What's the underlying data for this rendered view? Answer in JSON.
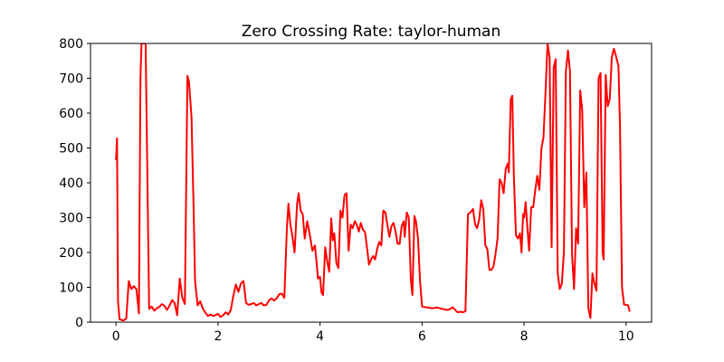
{
  "chart_data": {
    "type": "line",
    "title": "Zero Crossing Rate: taylor-human",
    "xlabel": "",
    "ylabel": "",
    "xlim": [
      -0.5,
      10.5
    ],
    "ylim": [
      0,
      800
    ],
    "x_ticks": [
      0,
      2,
      4,
      6,
      8,
      10
    ],
    "y_ticks": [
      0,
      100,
      200,
      300,
      400,
      500,
      600,
      700,
      800
    ],
    "grid": false,
    "series": [
      {
        "color": "#ff0000",
        "points": [
          [
            0.0,
            465
          ],
          [
            0.02,
            528
          ],
          [
            0.04,
            60
          ],
          [
            0.07,
            8
          ],
          [
            0.15,
            5
          ],
          [
            0.2,
            10
          ],
          [
            0.25,
            118
          ],
          [
            0.3,
            95
          ],
          [
            0.35,
            103
          ],
          [
            0.4,
            95
          ],
          [
            0.45,
            25
          ],
          [
            0.48,
            700
          ],
          [
            0.5,
            800
          ],
          [
            0.58,
            800
          ],
          [
            0.65,
            38
          ],
          [
            0.7,
            45
          ],
          [
            0.75,
            33
          ],
          [
            0.8,
            40
          ],
          [
            0.85,
            44
          ],
          [
            0.9,
            52
          ],
          [
            0.95,
            47
          ],
          [
            1.0,
            35
          ],
          [
            1.05,
            48
          ],
          [
            1.1,
            63
          ],
          [
            1.15,
            55
          ],
          [
            1.2,
            20
          ],
          [
            1.25,
            125
          ],
          [
            1.3,
            70
          ],
          [
            1.35,
            52
          ],
          [
            1.4,
            707
          ],
          [
            1.43,
            690
          ],
          [
            1.48,
            590
          ],
          [
            1.52,
            330
          ],
          [
            1.55,
            120
          ],
          [
            1.6,
            48
          ],
          [
            1.65,
            60
          ],
          [
            1.7,
            40
          ],
          [
            1.75,
            28
          ],
          [
            1.8,
            18
          ],
          [
            1.85,
            22
          ],
          [
            1.9,
            18
          ],
          [
            1.95,
            20
          ],
          [
            2.0,
            24
          ],
          [
            2.05,
            15
          ],
          [
            2.1,
            20
          ],
          [
            2.15,
            28
          ],
          [
            2.2,
            22
          ],
          [
            2.25,
            35
          ],
          [
            2.3,
            75
          ],
          [
            2.35,
            108
          ],
          [
            2.4,
            87
          ],
          [
            2.45,
            112
          ],
          [
            2.5,
            118
          ],
          [
            2.55,
            55
          ],
          [
            2.6,
            50
          ],
          [
            2.65,
            52
          ],
          [
            2.7,
            55
          ],
          [
            2.75,
            48
          ],
          [
            2.8,
            52
          ],
          [
            2.85,
            55
          ],
          [
            2.9,
            48
          ],
          [
            2.95,
            50
          ],
          [
            3.0,
            63
          ],
          [
            3.05,
            68
          ],
          [
            3.1,
            62
          ],
          [
            3.15,
            68
          ],
          [
            3.2,
            80
          ],
          [
            3.25,
            82
          ],
          [
            3.3,
            70
          ],
          [
            3.35,
            270
          ],
          [
            3.38,
            340
          ],
          [
            3.42,
            280
          ],
          [
            3.46,
            245
          ],
          [
            3.5,
            200
          ],
          [
            3.55,
            340
          ],
          [
            3.58,
            370
          ],
          [
            3.62,
            320
          ],
          [
            3.66,
            310
          ],
          [
            3.7,
            240
          ],
          [
            3.75,
            290
          ],
          [
            3.8,
            250
          ],
          [
            3.85,
            205
          ],
          [
            3.9,
            220
          ],
          [
            3.93,
            175
          ],
          [
            3.96,
            125
          ],
          [
            4.0,
            130
          ],
          [
            4.03,
            85
          ],
          [
            4.06,
            78
          ],
          [
            4.1,
            215
          ],
          [
            4.14,
            175
          ],
          [
            4.18,
            145
          ],
          [
            4.22,
            298
          ],
          [
            4.25,
            235
          ],
          [
            4.28,
            255
          ],
          [
            4.32,
            170
          ],
          [
            4.36,
            155
          ],
          [
            4.4,
            320
          ],
          [
            4.44,
            300
          ],
          [
            4.48,
            365
          ],
          [
            4.52,
            370
          ],
          [
            4.56,
            205
          ],
          [
            4.6,
            280
          ],
          [
            4.64,
            270
          ],
          [
            4.68,
            290
          ],
          [
            4.72,
            280
          ],
          [
            4.76,
            260
          ],
          [
            4.8,
            285
          ],
          [
            4.84,
            265
          ],
          [
            4.88,
            260
          ],
          [
            4.92,
            215
          ],
          [
            4.96,
            165
          ],
          [
            5.0,
            180
          ],
          [
            5.04,
            190
          ],
          [
            5.08,
            180
          ],
          [
            5.12,
            210
          ],
          [
            5.16,
            230
          ],
          [
            5.2,
            220
          ],
          [
            5.24,
            320
          ],
          [
            5.28,
            315
          ],
          [
            5.32,
            280
          ],
          [
            5.36,
            245
          ],
          [
            5.4,
            275
          ],
          [
            5.44,
            285
          ],
          [
            5.48,
            260
          ],
          [
            5.52,
            225
          ],
          [
            5.56,
            225
          ],
          [
            5.6,
            275
          ],
          [
            5.64,
            290
          ],
          [
            5.66,
            245
          ],
          [
            5.7,
            315
          ],
          [
            5.74,
            300
          ],
          [
            5.78,
            120
          ],
          [
            5.81,
            78
          ],
          [
            5.85,
            305
          ],
          [
            5.88,
            290
          ],
          [
            5.92,
            240
          ],
          [
            5.96,
            120
          ],
          [
            6.0,
            45
          ],
          [
            6.1,
            42
          ],
          [
            6.2,
            40
          ],
          [
            6.3,
            42
          ],
          [
            6.4,
            38
          ],
          [
            6.5,
            35
          ],
          [
            6.55,
            38
          ],
          [
            6.6,
            43
          ],
          [
            6.65,
            35
          ],
          [
            6.7,
            28
          ],
          [
            6.75,
            30
          ],
          [
            6.8,
            28
          ],
          [
            6.85,
            32
          ],
          [
            6.9,
            310
          ],
          [
            6.95,
            315
          ],
          [
            7.0,
            325
          ],
          [
            7.04,
            280
          ],
          [
            7.08,
            270
          ],
          [
            7.12,
            295
          ],
          [
            7.16,
            350
          ],
          [
            7.2,
            325
          ],
          [
            7.24,
            220
          ],
          [
            7.28,
            210
          ],
          [
            7.32,
            150
          ],
          [
            7.36,
            150
          ],
          [
            7.4,
            160
          ],
          [
            7.44,
            195
          ],
          [
            7.48,
            240
          ],
          [
            7.52,
            410
          ],
          [
            7.56,
            400
          ],
          [
            7.6,
            370
          ],
          [
            7.64,
            440
          ],
          [
            7.68,
            455
          ],
          [
            7.7,
            430
          ],
          [
            7.74,
            640
          ],
          [
            7.77,
            650
          ],
          [
            7.8,
            420
          ],
          [
            7.84,
            250
          ],
          [
            7.88,
            240
          ],
          [
            7.92,
            255
          ],
          [
            7.95,
            200
          ],
          [
            7.98,
            310
          ],
          [
            8.0,
            300
          ],
          [
            8.03,
            345
          ],
          [
            8.06,
            280
          ],
          [
            8.1,
            205
          ],
          [
            8.14,
            330
          ],
          [
            8.18,
            330
          ],
          [
            8.22,
            380
          ],
          [
            8.26,
            420
          ],
          [
            8.3,
            380
          ],
          [
            8.34,
            500
          ],
          [
            8.38,
            530
          ],
          [
            8.42,
            660
          ],
          [
            8.46,
            800
          ],
          [
            8.5,
            760
          ],
          [
            8.54,
            215
          ],
          [
            8.58,
            730
          ],
          [
            8.62,
            755
          ],
          [
            8.66,
            140
          ],
          [
            8.7,
            95
          ],
          [
            8.74,
            110
          ],
          [
            8.78,
            200
          ],
          [
            8.82,
            720
          ],
          [
            8.86,
            780
          ],
          [
            8.9,
            720
          ],
          [
            8.94,
            195
          ],
          [
            8.98,
            95
          ],
          [
            9.02,
            270
          ],
          [
            9.06,
            225
          ],
          [
            9.1,
            665
          ],
          [
            9.14,
            610
          ],
          [
            9.18,
            330
          ],
          [
            9.22,
            430
          ],
          [
            9.26,
            40
          ],
          [
            9.3,
            12
          ],
          [
            9.34,
            140
          ],
          [
            9.38,
            110
          ],
          [
            9.42,
            90
          ],
          [
            9.46,
            700
          ],
          [
            9.5,
            715
          ],
          [
            9.54,
            200
          ],
          [
            9.56,
            180
          ],
          [
            9.6,
            710
          ],
          [
            9.64,
            620
          ],
          [
            9.68,
            640
          ],
          [
            9.72,
            760
          ],
          [
            9.76,
            785
          ],
          [
            9.8,
            765
          ],
          [
            9.85,
            735
          ],
          [
            9.88,
            560
          ],
          [
            9.92,
            100
          ],
          [
            9.96,
            50
          ],
          [
            10.0,
            50
          ],
          [
            10.04,
            48
          ],
          [
            10.07,
            30
          ]
        ]
      }
    ]
  }
}
